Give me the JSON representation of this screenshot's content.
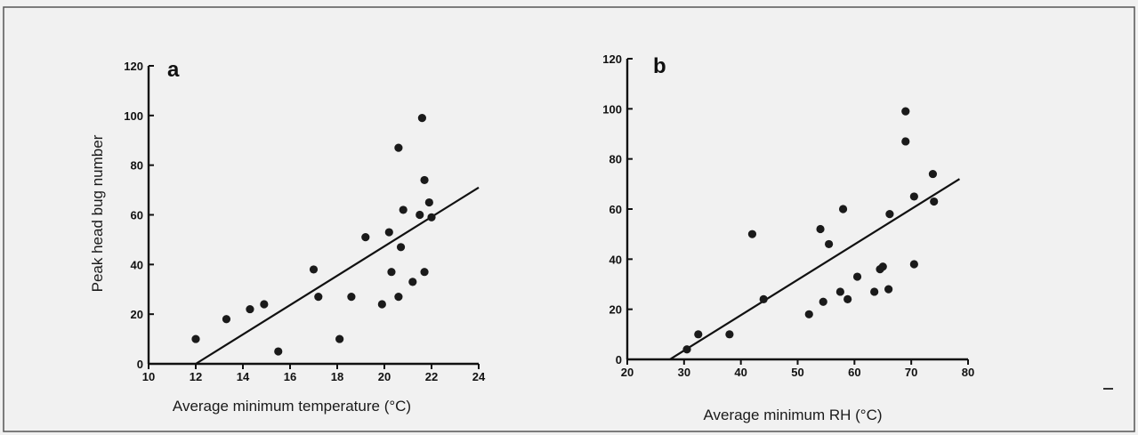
{
  "chart_data": [
    {
      "type": "scatter",
      "panel_label": "a",
      "xlabel": "Average minimum temperature (°C)",
      "ylabel": "Peak head bug number",
      "xlim": [
        10,
        24
      ],
      "ylim": [
        0,
        120
      ],
      "xticks": [
        "10",
        "12",
        "14",
        "16",
        "18",
        "20",
        "22",
        "24"
      ],
      "yticks": [
        "0",
        "20",
        "40",
        "60",
        "80",
        "100",
        "120"
      ],
      "points": [
        {
          "x": 12.0,
          "y": 10
        },
        {
          "x": 13.3,
          "y": 18
        },
        {
          "x": 14.3,
          "y": 22
        },
        {
          "x": 14.9,
          "y": 24
        },
        {
          "x": 15.5,
          "y": 5
        },
        {
          "x": 17.0,
          "y": 38
        },
        {
          "x": 17.2,
          "y": 27
        },
        {
          "x": 18.1,
          "y": 10
        },
        {
          "x": 18.6,
          "y": 27
        },
        {
          "x": 19.2,
          "y": 51
        },
        {
          "x": 19.9,
          "y": 24
        },
        {
          "x": 20.2,
          "y": 53
        },
        {
          "x": 20.3,
          "y": 37
        },
        {
          "x": 20.6,
          "y": 87
        },
        {
          "x": 20.6,
          "y": 27
        },
        {
          "x": 20.7,
          "y": 47
        },
        {
          "x": 20.8,
          "y": 62
        },
        {
          "x": 21.2,
          "y": 33
        },
        {
          "x": 21.5,
          "y": 60
        },
        {
          "x": 21.6,
          "y": 99
        },
        {
          "x": 21.7,
          "y": 37
        },
        {
          "x": 21.7,
          "y": 74
        },
        {
          "x": 21.9,
          "y": 65
        },
        {
          "x": 22.0,
          "y": 59
        }
      ],
      "fit_line": {
        "x": [
          12,
          24
        ],
        "y": [
          0,
          71
        ]
      }
    },
    {
      "type": "scatter",
      "panel_label": "b",
      "xlabel": "Average minimum RH (°C)",
      "ylabel": "",
      "xlim": [
        20,
        80
      ],
      "ylim": [
        0,
        120
      ],
      "xticks": [
        "20",
        "30",
        "40",
        "50",
        "60",
        "70",
        "80"
      ],
      "yticks": [
        "0",
        "20",
        "40",
        "60",
        "80",
        "100",
        "120"
      ],
      "points": [
        {
          "x": 30.5,
          "y": 4
        },
        {
          "x": 32.5,
          "y": 10
        },
        {
          "x": 38.0,
          "y": 10
        },
        {
          "x": 42.0,
          "y": 50
        },
        {
          "x": 44.0,
          "y": 24
        },
        {
          "x": 52.0,
          "y": 18
        },
        {
          "x": 54.0,
          "y": 52
        },
        {
          "x": 54.5,
          "y": 23
        },
        {
          "x": 55.5,
          "y": 46
        },
        {
          "x": 57.5,
          "y": 27
        },
        {
          "x": 58.0,
          "y": 60
        },
        {
          "x": 58.8,
          "y": 24
        },
        {
          "x": 60.5,
          "y": 33
        },
        {
          "x": 63.5,
          "y": 27
        },
        {
          "x": 64.5,
          "y": 36
        },
        {
          "x": 65.0,
          "y": 37
        },
        {
          "x": 66.0,
          "y": 28
        },
        {
          "x": 66.2,
          "y": 58
        },
        {
          "x": 69.0,
          "y": 99
        },
        {
          "x": 69.0,
          "y": 87
        },
        {
          "x": 70.5,
          "y": 38
        },
        {
          "x": 70.5,
          "y": 65
        },
        {
          "x": 73.8,
          "y": 74
        },
        {
          "x": 74.0,
          "y": 63
        }
      ],
      "fit_line": {
        "x": [
          27.5,
          78.5
        ],
        "y": [
          0,
          72
        ]
      }
    }
  ]
}
